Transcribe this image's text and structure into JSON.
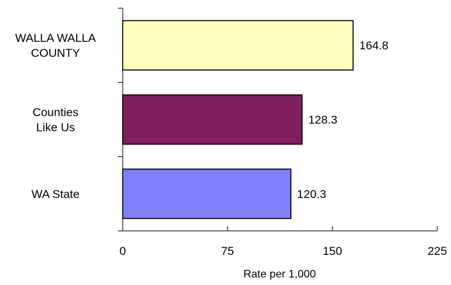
{
  "chart_data": {
    "type": "bar",
    "orientation": "horizontal",
    "title": "",
    "xlabel": "Rate per 1,000",
    "ylabel": "",
    "categories": [
      [
        "WALLA WALLA",
        "COUNTY"
      ],
      [
        "Counties",
        "Like Us"
      ],
      [
        "WA State"
      ]
    ],
    "values": [
      164.8,
      128.3,
      120.3
    ],
    "value_labels": [
      "164.8",
      "128.3",
      "120.3"
    ],
    "bar_colors": [
      "#FFFFC0",
      "#7F1F5F",
      "#8080FF"
    ],
    "xlim": [
      0,
      225
    ],
    "xticks": [
      0,
      75,
      150,
      225
    ],
    "xtick_labels": [
      "0",
      "75",
      "150",
      "225"
    ],
    "grid": false,
    "legend": "none"
  }
}
